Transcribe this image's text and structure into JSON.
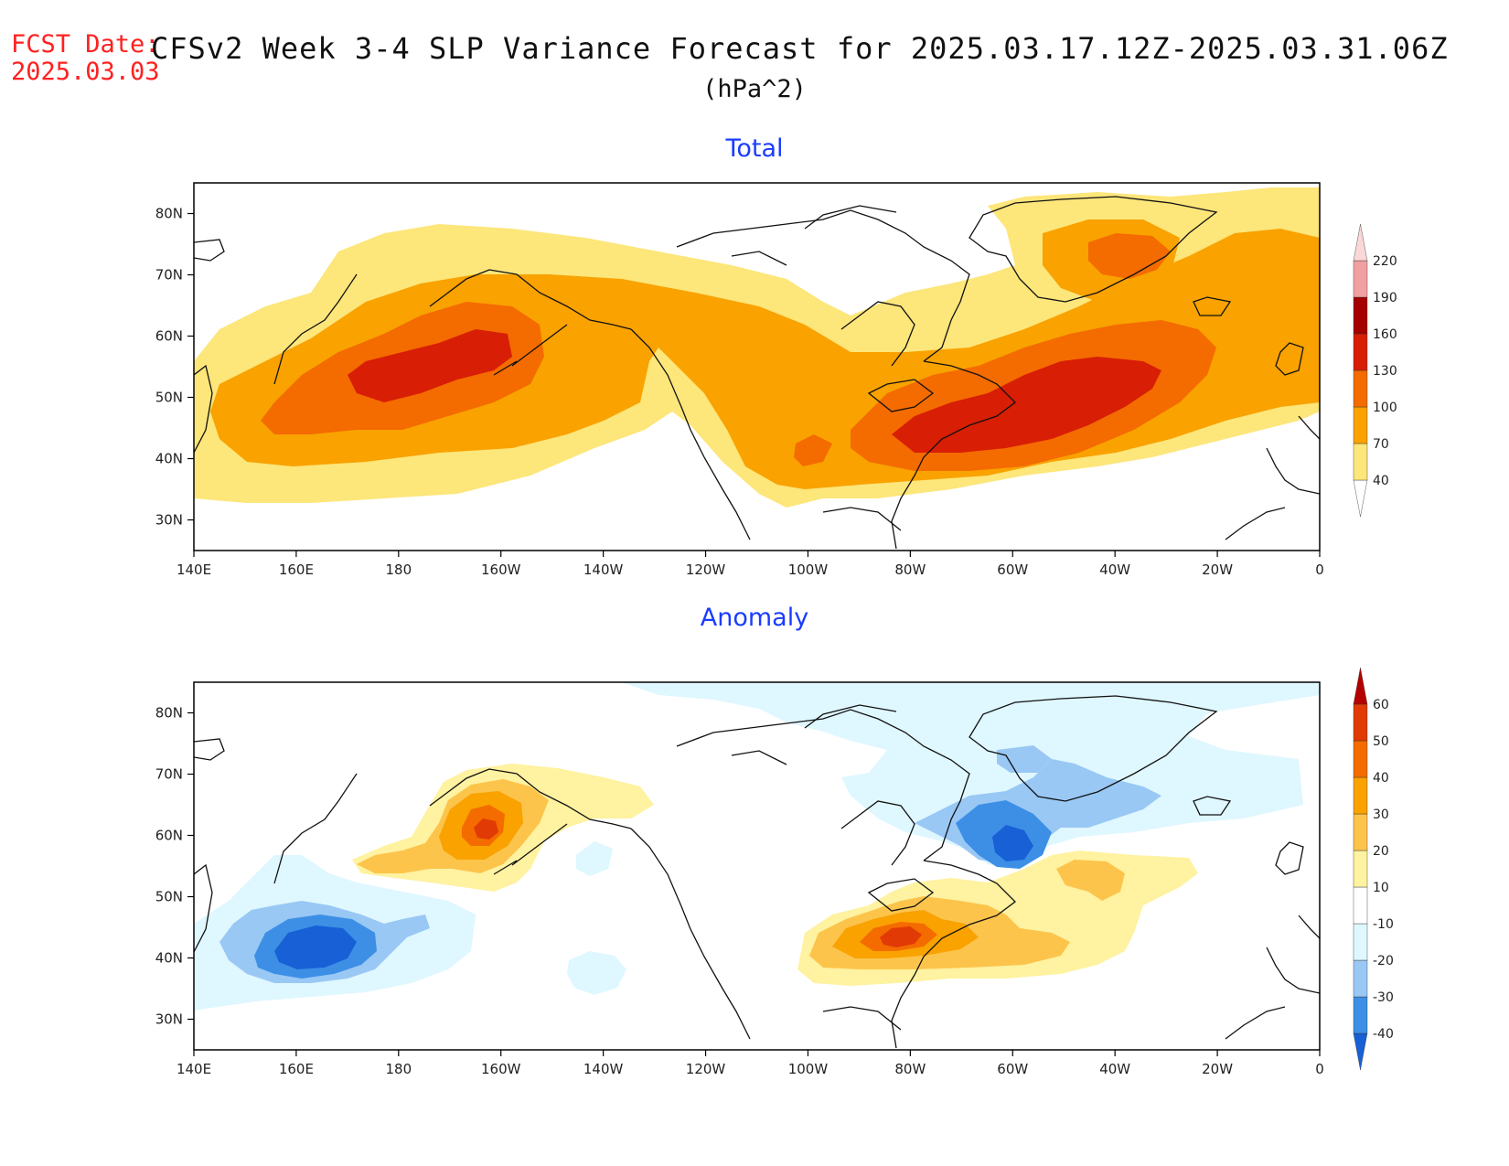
{
  "header": {
    "fcst_label": "FCST Date:",
    "fcst_date": "2025.03.03",
    "title": "CFSv2 Week 3-4 SLP Variance Forecast for 2025.03.17.12Z-2025.03.31.06Z",
    "units": "(hPa^2)"
  },
  "panels": [
    {
      "title": "Total",
      "lat_ticks": [
        "30N",
        "40N",
        "50N",
        "60N",
        "70N",
        "80N"
      ],
      "lon_ticks": [
        "140E",
        "160E",
        "180",
        "160W",
        "140W",
        "120W",
        "100W",
        "80W",
        "60W",
        "40W",
        "20W",
        "0"
      ],
      "colorbar": {
        "labels": [
          "40",
          "70",
          "100",
          "130",
          "160",
          "190",
          "220"
        ],
        "colors": [
          "#fde67a",
          "#f9a200",
          "#f46b00",
          "#d81e05",
          "#a50000",
          "#f0a0a0",
          "#fbd8d8"
        ]
      }
    },
    {
      "title": "Anomaly",
      "lat_ticks": [
        "30N",
        "40N",
        "50N",
        "60N",
        "70N",
        "80N"
      ],
      "lon_ticks": [
        "140E",
        "160E",
        "180",
        "160W",
        "140W",
        "120W",
        "100W",
        "80W",
        "60W",
        "40W",
        "20W",
        "0"
      ],
      "colorbar": {
        "labels": [
          "-40",
          "-30",
          "-20",
          "-10",
          "10",
          "20",
          "30",
          "40",
          "50",
          "60"
        ],
        "colors": [
          "#1760d6",
          "#3d8fe6",
          "#99c8f5",
          "#dff7ff",
          "#ffffff",
          "#fff2a0",
          "#fcc44b",
          "#f9a200",
          "#f46b00",
          "#e13a05",
          "#b50000"
        ]
      }
    }
  ],
  "chart_data": [
    {
      "type": "heatmap",
      "title": "Total",
      "variable": "SLP variance",
      "units": "hPa^2",
      "xlim": [
        140,
        360
      ],
      "ylim": [
        25,
        85
      ],
      "levels": [
        40,
        70,
        100,
        130,
        160,
        190,
        220
      ],
      "maxima": [
        {
          "lon": 182,
          "lat": 53,
          "value_range": [
            130,
            160
          ]
        },
        {
          "lon": 306,
          "lat": 48,
          "value_range": [
            130,
            160
          ]
        },
        {
          "lon": 318,
          "lat": 73,
          "value_range": [
            100,
            130
          ]
        }
      ]
    },
    {
      "type": "heatmap",
      "title": "Anomaly",
      "variable": "SLP variance anomaly",
      "units": "hPa^2",
      "xlim": [
        140,
        360
      ],
      "ylim": [
        25,
        85
      ],
      "levels": [
        -40,
        -30,
        -20,
        -10,
        10,
        20,
        30,
        40,
        50,
        60
      ],
      "extrema": [
        {
          "lon": 166,
          "lat": 44,
          "value_range": [
            -40,
            -30
          ]
        },
        {
          "lon": 300,
          "lat": 58,
          "value_range": [
            -40,
            -30
          ]
        },
        {
          "lon": 198,
          "lat": 60,
          "value_range": [
            40,
            50
          ]
        },
        {
          "lon": 280,
          "lat": 44,
          "value_range": [
            50,
            60
          ]
        }
      ]
    }
  ]
}
